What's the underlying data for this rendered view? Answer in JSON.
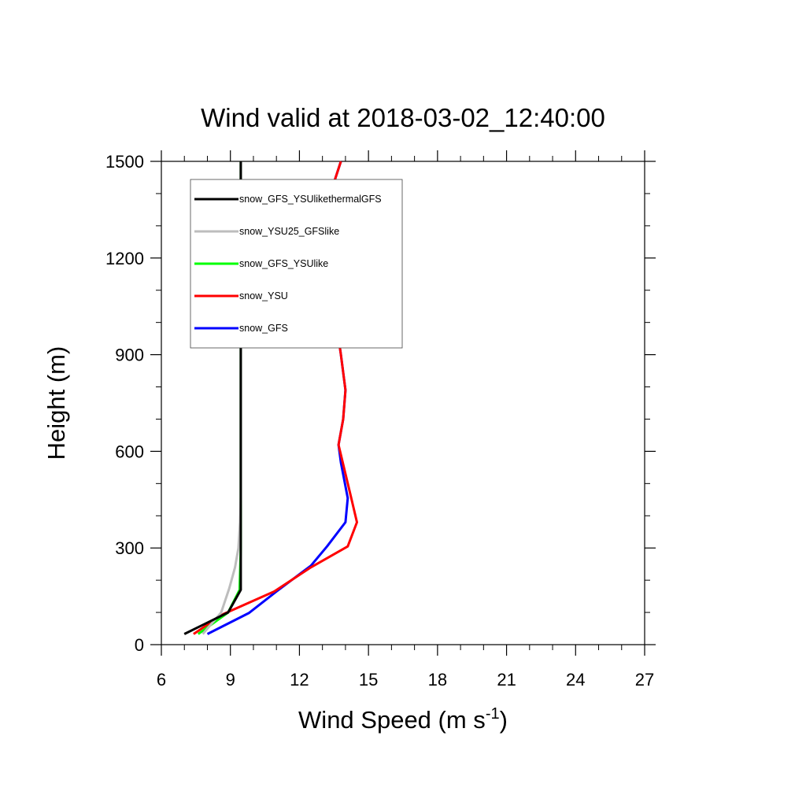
{
  "chart_data": {
    "type": "line",
    "title": "Wind valid at 2018-03-02_12:40:00",
    "xlabel": "Wind Speed (m s",
    "xlabel_superscript": "-1",
    "xlabel_suffix": ")",
    "ylabel": "Height (m)",
    "xlim": [
      6,
      27
    ],
    "ylim": [
      0,
      1500
    ],
    "xticks": [
      6,
      9,
      12,
      15,
      18,
      21,
      24,
      27
    ],
    "yticks": [
      0,
      300,
      600,
      900,
      1200,
      1500
    ],
    "grid": false,
    "legend_position": "top-left",
    "series": [
      {
        "name": "snow_GFS",
        "color": "#0000ff",
        "points": [
          [
            8.0,
            33
          ],
          [
            9.8,
            98
          ],
          [
            11.0,
            165
          ],
          [
            12.5,
            245
          ],
          [
            13.2,
            305
          ],
          [
            14.0,
            380
          ],
          [
            14.1,
            455
          ],
          [
            13.8,
            565
          ],
          [
            13.7,
            620
          ],
          [
            13.9,
            700
          ],
          [
            14.0,
            790
          ],
          [
            13.8,
            900
          ],
          [
            13.5,
            1050
          ],
          [
            13.1,
            1170
          ],
          [
            13.0,
            1290
          ],
          [
            13.3,
            1390
          ],
          [
            13.8,
            1500
          ]
        ]
      },
      {
        "name": "snow_YSU",
        "color": "#ff0000",
        "points": [
          [
            7.4,
            33
          ],
          [
            8.7,
            95
          ],
          [
            10.9,
            165
          ],
          [
            12.5,
            240
          ],
          [
            14.1,
            305
          ],
          [
            14.5,
            380
          ],
          [
            14.2,
            470
          ],
          [
            13.9,
            560
          ],
          [
            13.7,
            620
          ],
          [
            13.9,
            700
          ],
          [
            14.0,
            790
          ],
          [
            13.8,
            900
          ],
          [
            13.5,
            1050
          ],
          [
            13.1,
            1170
          ],
          [
            13.0,
            1290
          ],
          [
            13.3,
            1390
          ],
          [
            13.8,
            1500
          ]
        ]
      },
      {
        "name": "snow_GFS_YSUlike",
        "color": "#00ff00",
        "points": [
          [
            7.6,
            33
          ],
          [
            8.9,
            100
          ],
          [
            9.4,
            170
          ],
          [
            9.45,
            300
          ],
          [
            9.45,
            450
          ],
          [
            9.45,
            700
          ],
          [
            9.45,
            1000
          ],
          [
            9.45,
            1300
          ],
          [
            9.45,
            1500
          ]
        ]
      },
      {
        "name": "snow_YSU25_GFSlike",
        "color": "#bdbdbd",
        "points": [
          [
            7.8,
            33
          ],
          [
            8.6,
            100
          ],
          [
            8.95,
            175
          ],
          [
            9.2,
            240
          ],
          [
            9.35,
            300
          ],
          [
            9.42,
            380
          ],
          [
            9.45,
            460
          ],
          [
            9.45,
            700
          ],
          [
            9.45,
            1000
          ],
          [
            9.45,
            1300
          ],
          [
            9.45,
            1500
          ]
        ]
      },
      {
        "name": "snow_GFS_YSUlikethermalGFS",
        "color": "#000000",
        "points": [
          [
            7.0,
            33
          ],
          [
            8.9,
            100
          ],
          [
            9.45,
            170
          ],
          [
            9.45,
            300
          ],
          [
            9.45,
            450
          ],
          [
            9.45,
            700
          ],
          [
            9.45,
            1000
          ],
          [
            9.45,
            1300
          ],
          [
            9.45,
            1500
          ]
        ]
      }
    ],
    "legend_order": [
      "snow_GFS_YSUlikethermalGFS",
      "snow_YSU25_GFSlike",
      "snow_GFS_YSUlike",
      "snow_YSU",
      "snow_GFS"
    ]
  }
}
